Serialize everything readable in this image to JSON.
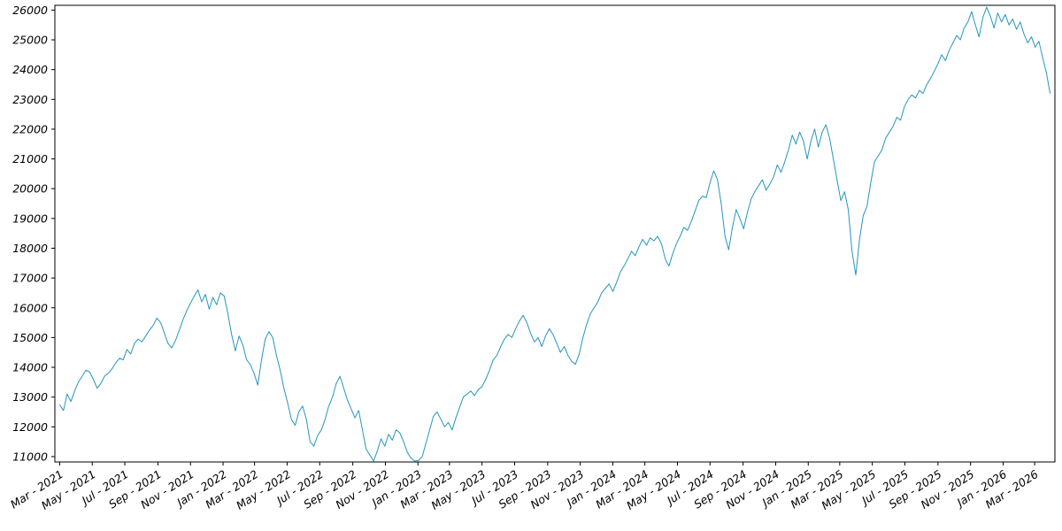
{
  "page": {
    "background": "#ffffff"
  },
  "chart_data": {
    "type": "line",
    "title": "",
    "xlabel": "",
    "ylabel": "",
    "grid": false,
    "legend": "none",
    "line_color": "#2596be",
    "axis_color": "#000000",
    "x_start_date": "2021-03-01",
    "x_step_days": 7,
    "ylim": [
      10820,
      26160
    ],
    "y_ticks": [
      11000,
      12000,
      13000,
      14000,
      15000,
      16000,
      17000,
      18000,
      19000,
      20000,
      21000,
      22000,
      23000,
      24000,
      25000,
      26000
    ],
    "x_tick_labels": [
      "Mar - 2021",
      "May - 2021",
      "Jul - 2021",
      "Sep - 2021",
      "Nov - 2021",
      "Jan - 2022",
      "Mar - 2022",
      "May - 2022",
      "Jul - 2022",
      "Sep - 2022",
      "Nov - 2022",
      "Jan - 2023",
      "Mar - 2023",
      "May - 2023",
      "Jul - 2023",
      "Sep - 2023",
      "Nov - 2023",
      "Jan - 2024",
      "Mar - 2024",
      "May - 2024",
      "Jul - 2024",
      "Sep - 2024",
      "Nov - 2024",
      "Jan - 2025",
      "Mar - 2025",
      "May - 2025",
      "Jul - 2025",
      "Sep - 2025",
      "Nov - 2025",
      "Jan - 2026",
      "Mar - 2026"
    ],
    "values": [
      12750,
      12550,
      13100,
      12850,
      13200,
      13500,
      13700,
      13900,
      13850,
      13600,
      13300,
      13450,
      13700,
      13800,
      13950,
      14150,
      14300,
      14250,
      14600,
      14450,
      14800,
      14950,
      14850,
      15050,
      15250,
      15400,
      15650,
      15500,
      15150,
      14800,
      14650,
      14900,
      15250,
      15600,
      15900,
      16150,
      16400,
      16600,
      16200,
      16450,
      15950,
      16350,
      16100,
      16500,
      16400,
      15800,
      15100,
      14550,
      15050,
      14750,
      14250,
      14100,
      13800,
      13400,
      14250,
      14950,
      15200,
      15000,
      14400,
      13900,
      13300,
      12800,
      12250,
      12050,
      12500,
      12700,
      12250,
      11500,
      11350,
      11700,
      11900,
      12250,
      12700,
      13000,
      13450,
      13700,
      13300,
      12900,
      12600,
      12300,
      12550,
      11900,
      11250,
      11050,
      10850,
      11200,
      11600,
      11350,
      11750,
      11550,
      11900,
      11800,
      11500,
      11150,
      10950,
      10850,
      10870,
      11000,
      11450,
      11900,
      12350,
      12500,
      12250,
      12000,
      12150,
      11900,
      12300,
      12650,
      13000,
      13100,
      13200,
      13050,
      13250,
      13350,
      13600,
      13900,
      14250,
      14400,
      14700,
      14950,
      15100,
      15000,
      15300,
      15550,
      15750,
      15500,
      15150,
      14850,
      15000,
      14700,
      15050,
      15300,
      15100,
      14800,
      14500,
      14700,
      14400,
      14200,
      14100,
      14450,
      15000,
      15450,
      15800,
      16000,
      16200,
      16500,
      16650,
      16800,
      16550,
      16850,
      17200,
      17400,
      17650,
      17900,
      17750,
      18050,
      18300,
      18100,
      18350,
      18250,
      18400,
      18150,
      17650,
      17400,
      17800,
      18150,
      18400,
      18700,
      18600,
      18900,
      19250,
      19600,
      19750,
      19700,
      20200,
      20600,
      20300,
      19500,
      18400,
      17950,
      18700,
      19300,
      19000,
      18650,
      19200,
      19650,
      19900,
      20100,
      20300,
      19950,
      20150,
      20400,
      20800,
      20550,
      20900,
      21300,
      21800,
      21500,
      21900,
      21600,
      21000,
      21600,
      22000,
      21400,
      21900,
      22150,
      21700,
      21000,
      20300,
      19600,
      19900,
      19300,
      17900,
      17100,
      18300,
      19100,
      19400,
      20200,
      20900,
      21100,
      21300,
      21700,
      21900,
      22100,
      22400,
      22300,
      22750,
      23000,
      23150,
      23050,
      23300,
      23200,
      23500,
      23700,
      23950,
      24200,
      24500,
      24300,
      24650,
      24900,
      25150,
      25000,
      25400,
      25600,
      25950,
      25500,
      25100,
      25750,
      26100,
      25800,
      25400,
      25900,
      25600,
      25850,
      25500,
      25700,
      25350,
      25600,
      25200,
      24900,
      25100,
      24750,
      24950,
      24400,
      23900,
      23200
    ]
  }
}
